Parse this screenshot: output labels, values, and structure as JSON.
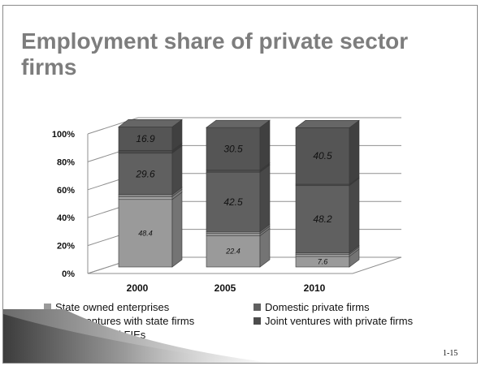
{
  "slide": {
    "title": "Employment share of private sector firms",
    "slide_number": "1-15"
  },
  "colors": {
    "state_owned": "#9a9a9a",
    "joint_state": "#a6a6a6",
    "wholly_owned": "#8a8a8a",
    "domestic_private": "#606060",
    "joint_private": "#4c4c4c",
    "gridline": "#8f8f8f"
  },
  "chart_data": {
    "type": "bar",
    "stacked": true,
    "three_d": true,
    "title": "",
    "xlabel": "",
    "ylabel": "",
    "ylim": [
      0,
      100
    ],
    "yticks": [
      "0%",
      "20%",
      "40%",
      "60%",
      "80%",
      "100%"
    ],
    "categories": [
      "2000",
      "2005",
      "2010"
    ],
    "series": [
      {
        "name": "State owned enterprises",
        "color": "#9a9a9a",
        "values": [
          48.4,
          22.4,
          7.6
        ]
      },
      {
        "name": "Joint ventures with state firms",
        "color": "#a6a6a6",
        "values": [
          2.0,
          1.5,
          1.5
        ]
      },
      {
        "name": "Wholly owned FIEs",
        "color": "#8a8a8a",
        "values": [
          1.5,
          1.5,
          1.0
        ]
      },
      {
        "name": "Domestic private firms",
        "color": "#606060",
        "values": [
          29.6,
          42.5,
          48.2
        ]
      },
      {
        "name": "Joint ventures with private firms",
        "color": "#4c4c4c",
        "values": [
          2.0,
          1.5,
          1.0
        ]
      },
      {
        "name": "",
        "color": "#555555",
        "values": [
          16.9,
          30.5,
          40.5
        ]
      }
    ],
    "data_labels": [
      {
        "category": "2000",
        "series": "State owned enterprises",
        "text": "48.4"
      },
      {
        "category": "2000",
        "series": "Domestic private firms",
        "text": "29.6"
      },
      {
        "category": "2000",
        "series": "",
        "text": "16.9"
      },
      {
        "category": "2005",
        "series": "State owned enterprises",
        "text": "22.4"
      },
      {
        "category": "2005",
        "series": "Domestic private firms",
        "text": "42.5"
      },
      {
        "category": "2005",
        "series": "",
        "text": "30.5"
      },
      {
        "category": "2010",
        "series": "State owned enterprises",
        "text": "7.6"
      },
      {
        "category": "2010",
        "series": "Domestic private firms",
        "text": "48.2"
      },
      {
        "category": "2010",
        "series": "",
        "text": "40.5"
      }
    ],
    "grid": true,
    "legend_placement": "bottom"
  },
  "legend": [
    {
      "label": "State owned enterprises",
      "color": "#9a9a9a"
    },
    {
      "label": "Domestic private firms",
      "color": "#606060"
    },
    {
      "label": "Joint ventures with state firms",
      "color": "#a6a6a6"
    },
    {
      "label": "Joint ventures with private firms",
      "color": "#4c4c4c"
    },
    {
      "label": "Wholly owned FIEs",
      "color": "#8a8a8a"
    }
  ]
}
